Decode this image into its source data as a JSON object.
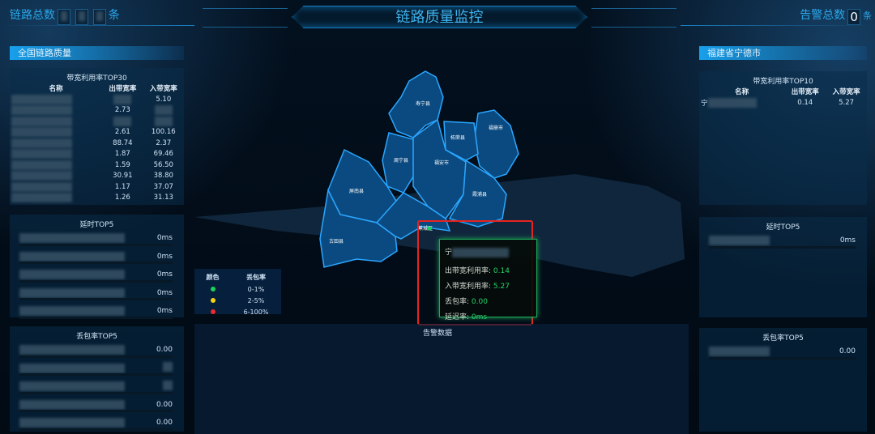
{
  "header": {
    "title": "链路质量监控",
    "link_total_label": "链路总数",
    "link_total_unit": "条",
    "alarm_total_label": "告警总数",
    "alarm_total_value": "0",
    "alarm_total_unit": "条"
  },
  "left": {
    "section_title": "全国链路质量",
    "bandwidth": {
      "title": "带宽利用率TOP30",
      "columns": [
        "名称",
        "出带宽率",
        "入带宽率"
      ],
      "rows": [
        [
          "",
          "",
          "5.10"
        ],
        [
          "",
          "2.73",
          ""
        ],
        [
          "",
          "",
          ""
        ],
        [
          "",
          "2.61",
          "100.16"
        ],
        [
          "",
          "88.74",
          "2.37"
        ],
        [
          "",
          "1.87",
          "69.46"
        ],
        [
          "",
          "1.59",
          "56.50"
        ],
        [
          "",
          "30.91",
          "38.80"
        ],
        [
          "",
          "1.17",
          "37.07"
        ],
        [
          "",
          "1.26",
          "31.13"
        ]
      ]
    },
    "delay": {
      "title": "延时TOP5",
      "rows": [
        "0ms",
        "0ms",
        "0ms",
        "0ms",
        "0ms"
      ]
    },
    "loss": {
      "title": "丢包率TOP5",
      "rows": [
        "0.00",
        "",
        "",
        "0.00",
        "0.00"
      ]
    }
  },
  "right": {
    "section_title": "福建省宁德市",
    "bandwidth": {
      "title": "带宽利用率TOP10",
      "columns": [
        "名称",
        "出带宽率",
        "入带宽率"
      ],
      "rows": [
        [
          "宁",
          "0.14",
          "5.27"
        ]
      ]
    },
    "delay": {
      "title": "延时TOP5",
      "rows": [
        "0ms"
      ]
    },
    "loss": {
      "title": "丢包率TOP5",
      "rows": [
        "0.00"
      ]
    }
  },
  "map": {
    "regions": [
      "寿宁县",
      "福鼎市",
      "柘荣县",
      "周宁县",
      "福安市",
      "屏南县",
      "霞浦县",
      "古田县",
      "蕉城区"
    ],
    "fill_color": "#0b4a80",
    "border_color": "#2aa6ff"
  },
  "legend": {
    "col_color": "颜色",
    "col_loss": "丢包率",
    "items": [
      {
        "color": "#19d35a",
        "range": "0-1%"
      },
      {
        "color": "#f5d312",
        "range": "2-5%"
      },
      {
        "color": "#f02a2a",
        "range": "6-100%"
      }
    ]
  },
  "tooltip": {
    "name": "宁",
    "out_label": "出带宽利用率:",
    "out_value": "0.14",
    "in_label": "入带宽利用率:",
    "in_value": "5.27",
    "loss_label": "丢包率:",
    "loss_value": "0.00",
    "delay_label": "延迟率:",
    "delay_value": "0ms"
  },
  "alarm": {
    "title": "告警数据"
  }
}
